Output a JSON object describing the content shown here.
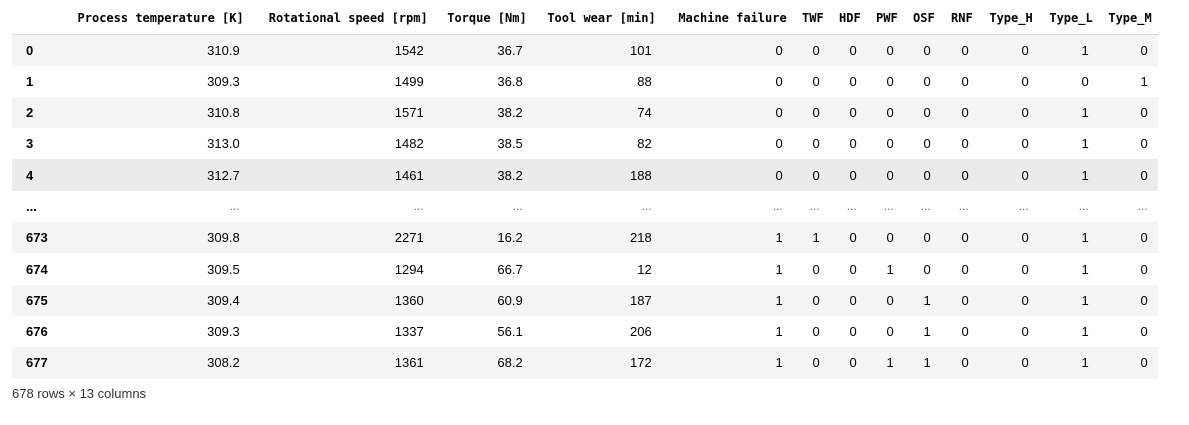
{
  "table": {
    "columns": [
      "",
      "Process temperature [K]",
      "Rotational speed [rpm]",
      "Torque [Nm]",
      "Tool wear [min]",
      "Machine failure",
      "TWF",
      "HDF",
      "PWF",
      "OSF",
      "RNF",
      "Type_H",
      "Type_L",
      "Type_M"
    ],
    "rows": [
      {
        "index": "0",
        "cells": [
          "310.9",
          "1542",
          "36.7",
          "101",
          "0",
          "0",
          "0",
          "0",
          "0",
          "0",
          "0",
          "1",
          "0"
        ]
      },
      {
        "index": "1",
        "cells": [
          "309.3",
          "1499",
          "36.8",
          "88",
          "0",
          "0",
          "0",
          "0",
          "0",
          "0",
          "0",
          "0",
          "1"
        ]
      },
      {
        "index": "2",
        "cells": [
          "310.8",
          "1571",
          "38.2",
          "74",
          "0",
          "0",
          "0",
          "0",
          "0",
          "0",
          "0",
          "1",
          "0"
        ]
      },
      {
        "index": "3",
        "cells": [
          "313.0",
          "1482",
          "38.5",
          "82",
          "0",
          "0",
          "0",
          "0",
          "0",
          "0",
          "0",
          "1",
          "0"
        ]
      },
      {
        "index": "4",
        "cells": [
          "312.7",
          "1461",
          "38.2",
          "188",
          "0",
          "0",
          "0",
          "0",
          "0",
          "0",
          "0",
          "1",
          "0"
        ]
      },
      {
        "index": "...",
        "cells": [
          "...",
          "...",
          "...",
          "...",
          "...",
          "...",
          "...",
          "...",
          "...",
          "...",
          "...",
          "...",
          "..."
        ]
      },
      {
        "index": "673",
        "cells": [
          "309.8",
          "2271",
          "16.2",
          "218",
          "1",
          "1",
          "0",
          "0",
          "0",
          "0",
          "0",
          "1",
          "0"
        ]
      },
      {
        "index": "674",
        "cells": [
          "309.5",
          "1294",
          "66.7",
          "12",
          "1",
          "0",
          "0",
          "1",
          "0",
          "0",
          "0",
          "1",
          "0"
        ]
      },
      {
        "index": "675",
        "cells": [
          "309.4",
          "1360",
          "60.9",
          "187",
          "1",
          "0",
          "0",
          "0",
          "1",
          "0",
          "0",
          "1",
          "0"
        ]
      },
      {
        "index": "676",
        "cells": [
          "309.3",
          "1337",
          "56.1",
          "206",
          "1",
          "0",
          "0",
          "0",
          "1",
          "0",
          "0",
          "1",
          "0"
        ]
      },
      {
        "index": "677",
        "cells": [
          "308.2",
          "1361",
          "68.2",
          "172",
          "1",
          "0",
          "0",
          "1",
          "1",
          "0",
          "0",
          "1",
          "0"
        ]
      }
    ],
    "hover_row_index": "4"
  },
  "shape_text": "678 rows × 13 columns"
}
